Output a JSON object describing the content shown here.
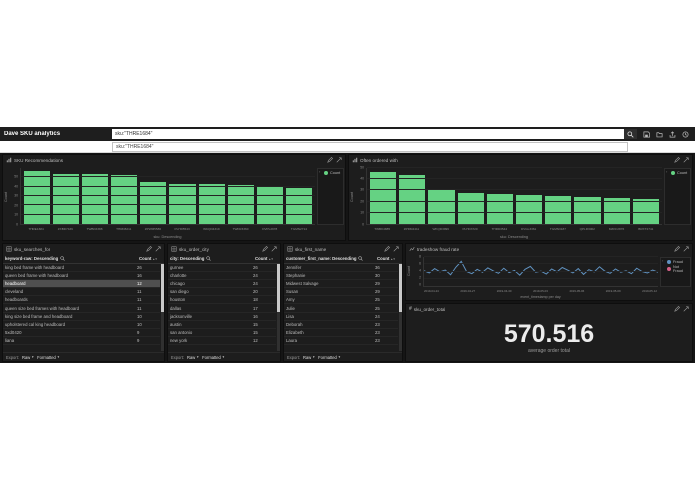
{
  "topbar": {
    "title": "Dave SKU analytics",
    "query": "sku:\"THRE1684\"",
    "suggestion": "sku:\"THRE1684\""
  },
  "export_footer": {
    "label": "Export:",
    "raw": "Raw",
    "formatted": "Formatted"
  },
  "colors": {
    "bar": "#65d283",
    "fraud": "#6092c0",
    "not_fraud": "#d36086",
    "panel_bg": "#1d1d1d",
    "dashboard_bg": "#151515"
  },
  "chart_data": [
    {
      "id": "recommendations",
      "type": "bar",
      "title": "SKU Recommendations",
      "categories": [
        "THRE1684",
        "ZXBD7439",
        "TWBK6388",
        "THRD8211",
        "ZPWM5586",
        "PLHD5543",
        "WKQD4319",
        "TWFR3360",
        "DVPL2978",
        "TGMN2714"
      ],
      "values": [
        57,
        54,
        54,
        53,
        45,
        43,
        43,
        42,
        41,
        39
      ],
      "xlabel": "sku: Descending",
      "ylabel": "Count",
      "ylim": [
        0,
        60
      ],
      "yticks": [
        0,
        10,
        20,
        30,
        40,
        50
      ],
      "legend": [
        "Count"
      ],
      "legend_position": "right",
      "grid": true
    },
    {
      "id": "often",
      "type": "bar",
      "title": "Often ordered with",
      "categories": [
        "TWBK4885",
        "ZPDM4411",
        "WKQD3996",
        "PLHD3720",
        "THRD3544",
        "DVGL3361",
        "TGMN3187",
        "QPLR3002",
        "MZKF2876",
        "BRXT2741"
      ],
      "values": [
        46,
        44,
        30,
        28,
        27,
        26,
        25,
        24,
        23,
        22
      ],
      "xlabel": "sku: Descending",
      "ylabel": "Count",
      "ylim": [
        0,
        50
      ],
      "yticks": [
        0,
        10,
        20,
        30,
        40,
        50
      ],
      "legend": [
        "Count"
      ],
      "legend_position": "right",
      "grid": true
    },
    {
      "id": "fraud",
      "type": "line",
      "title": "tradeshow fraud rate",
      "xlabel": "event_timestamp per day",
      "ylabel": "Count",
      "ylim": [
        0,
        8
      ],
      "yticks": [
        0,
        2,
        4,
        6,
        8
      ],
      "x_ticklabels": [
        "2019-04-24",
        "2019-04-27",
        "2019-04-30",
        "2019-05-03",
        "2019-05-06",
        "2019-05-09",
        "2019-05-12"
      ],
      "legend_position": "right",
      "grid": true,
      "series": [
        {
          "name": "Fraud",
          "color": "#6092c0",
          "values": [
            4.2,
            3.6,
            4.8,
            3.9,
            4.4,
            3.1,
            5.2,
            6.8,
            4.0,
            3.4,
            4.6,
            3.8,
            5.0,
            4.2,
            3.5,
            4.9,
            3.7,
            4.3,
            3.0,
            4.6,
            5.4,
            3.8,
            4.1,
            3.3,
            4.7,
            3.9,
            5.1,
            4.4,
            3.6,
            4.8,
            3.2,
            4.5,
            3.9,
            5.3,
            4.1,
            3.5,
            4.7,
            3.8,
            4.2,
            3.4,
            4.9,
            4.0,
            3.6,
            4.4,
            3.8
          ]
        },
        {
          "name": "Not Fraud",
          "color": "#d36086",
          "values": []
        }
      ]
    },
    {
      "id": "searches",
      "type": "table",
      "title": "sku_searches_for",
      "columns": [
        "keyword-raw: Descending",
        "Count"
      ],
      "highlight_row": 2,
      "rows": [
        [
          "king bed frame with headboard",
          26
        ],
        [
          "queen bed frame with headboard",
          16
        ],
        [
          "headboard",
          12
        ],
        [
          "cleveland",
          11
        ],
        [
          "headboards",
          11
        ],
        [
          "queen size bed frames with headboard",
          11
        ],
        [
          "king size bed frame and headboard",
          10
        ],
        [
          "upholstered cal king headboard",
          10
        ],
        [
          "5xd0420",
          9
        ],
        [
          "liana",
          9
        ]
      ]
    },
    {
      "id": "order_city",
      "type": "table",
      "title": "sku_order_city",
      "columns": [
        "city: Descending",
        "Count"
      ],
      "rows": [
        [
          "gurnee",
          26
        ],
        [
          "charlotte",
          24
        ],
        [
          "chicago",
          24
        ],
        [
          "san diego",
          20
        ],
        [
          "houston",
          18
        ],
        [
          "dallas",
          17
        ],
        [
          "jacksonville",
          16
        ],
        [
          "austin",
          15
        ],
        [
          "san antonio",
          15
        ],
        [
          "new york",
          12
        ]
      ]
    },
    {
      "id": "first_name",
      "type": "table",
      "title": "sku_first_name",
      "columns": [
        "customer_first_name: Descending",
        "Count"
      ],
      "rows": [
        [
          "Jennifer",
          36
        ],
        [
          "Stephanie",
          30
        ],
        [
          "Midwest Salvage",
          29
        ],
        [
          "Susan",
          29
        ],
        [
          "Amy",
          25
        ],
        [
          "Julie",
          25
        ],
        [
          "Lisa",
          24
        ],
        [
          "Deborah",
          23
        ],
        [
          "Elizabeth",
          23
        ],
        [
          "Laura",
          23
        ]
      ]
    },
    {
      "id": "order_total",
      "type": "metric",
      "title": "sku_order_total",
      "value": "570.516",
      "label": "average order total"
    }
  ]
}
